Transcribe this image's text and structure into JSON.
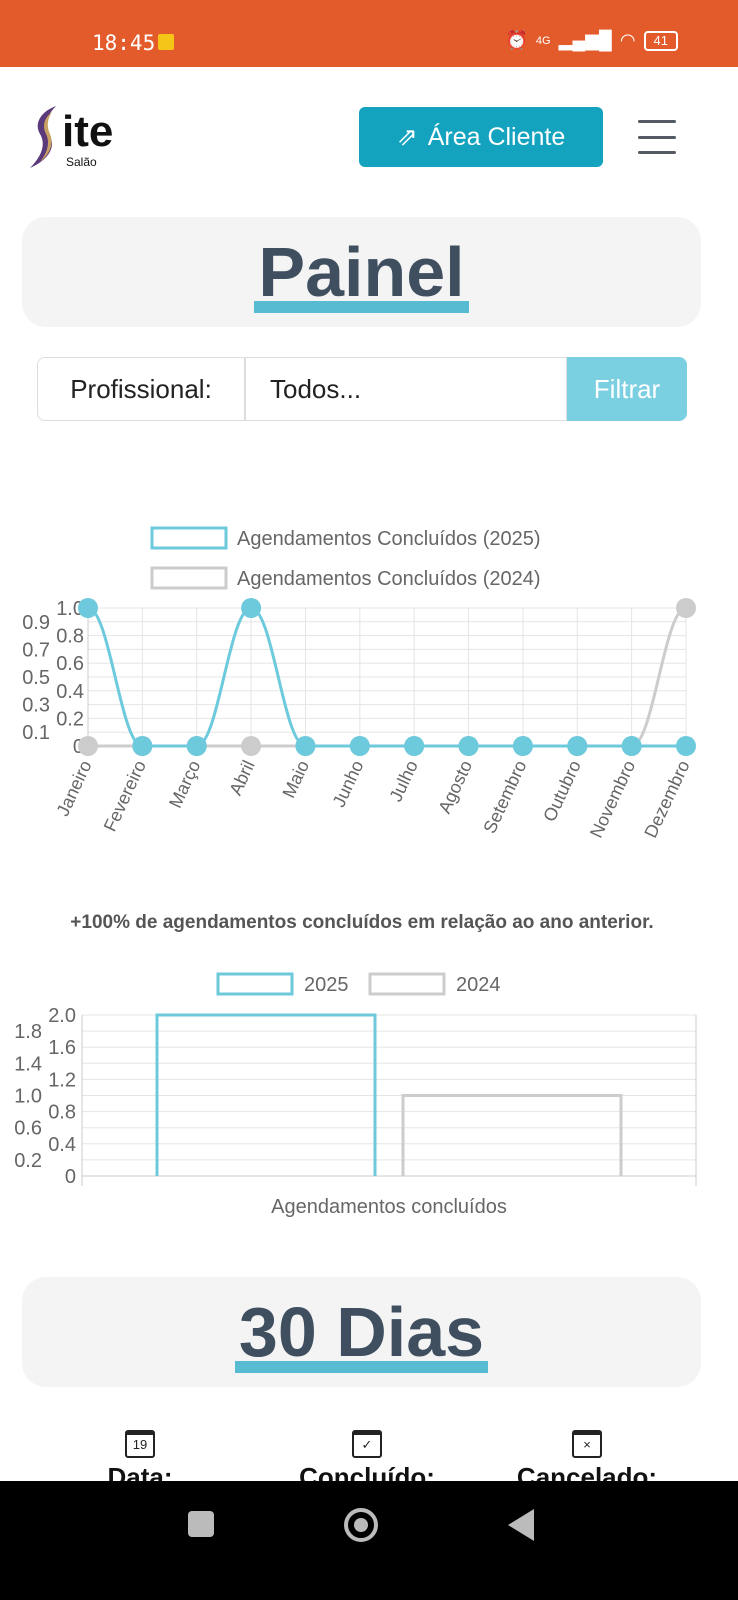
{
  "status_bar": {
    "time": "18:45",
    "battery": "41",
    "network": "4G"
  },
  "header": {
    "logo_main": "ite",
    "logo_sub": "Salão",
    "area_cliente": "Área Cliente"
  },
  "painel": {
    "title": "Painel"
  },
  "filter": {
    "label": "Profissional:",
    "select_value": "Todos...",
    "button": "Filtrar"
  },
  "comparison_note": "+100% de agendamentos concluídos em relação ao ano anterior.",
  "section_30": {
    "title": "30 Dias"
  },
  "stats": [
    {
      "label": "Data:",
      "icon_text": "19"
    },
    {
      "label": "Concluído:",
      "icon_text": "✓"
    },
    {
      "label": "Cancelado:",
      "icon_text": "×"
    }
  ],
  "colors": {
    "status_bar": "#e45b2b",
    "accent": "#14a3bf",
    "series_2025": "#6ccadc",
    "series_2024": "#cccccc"
  },
  "chart_data": [
    {
      "type": "line",
      "legend_position": "top",
      "grid": true,
      "categories": [
        "Janeiro",
        "Fevereiro",
        "Março",
        "Abril",
        "Maio",
        "Junho",
        "Julho",
        "Agosto",
        "Setembro",
        "Outubro",
        "Novembro",
        "Dezembro"
      ],
      "series": [
        {
          "name": "Agendamentos Concluídos (2025)",
          "color": "#6ccadc",
          "values": [
            1,
            0,
            0,
            1,
            0,
            0,
            0,
            0,
            0,
            0,
            0,
            0
          ]
        },
        {
          "name": "Agendamentos Concluídos (2024)",
          "color": "#cccccc",
          "values": [
            0,
            0,
            0,
            0,
            0,
            0,
            0,
            0,
            0,
            0,
            0,
            1
          ]
        }
      ],
      "ylim": [
        0,
        1
      ],
      "yticks": [
        "0",
        "0.1",
        "0.2",
        "0.3",
        "0.4",
        "0.5",
        "0.6",
        "0.7",
        "0.8",
        "0.9",
        "1.0"
      ]
    },
    {
      "type": "bar",
      "legend_position": "top",
      "grid": true,
      "categories": [
        "Agendamentos concluídos"
      ],
      "series": [
        {
          "name": "2025",
          "color": "#6ccadc",
          "values": [
            2
          ]
        },
        {
          "name": "2024",
          "color": "#cccccc",
          "values": [
            1
          ]
        }
      ],
      "ylim": [
        0,
        2
      ],
      "yticks": [
        "0",
        "0.2",
        "0.4",
        "0.6",
        "0.8",
        "1.0",
        "1.2",
        "1.4",
        "1.6",
        "1.8",
        "2.0"
      ]
    }
  ]
}
